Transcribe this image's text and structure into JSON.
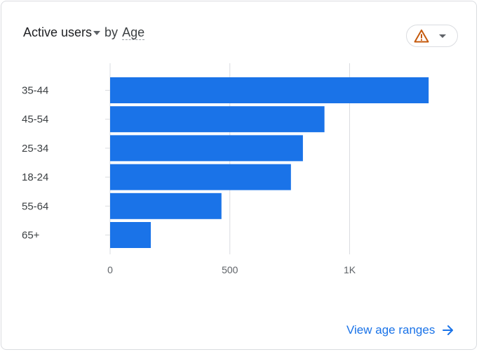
{
  "card": {
    "title_metric": "Active users",
    "title_by": "by",
    "title_dimension": "Age",
    "warning_icon": "warning-triangle-icon",
    "view_link": "View age ranges",
    "view_link_icon": "arrow-right-icon"
  },
  "colors": {
    "bar": "#1a73e8",
    "warning": "#c5590c",
    "link": "#1a73e8"
  },
  "chart_data": {
    "type": "bar",
    "orientation": "horizontal",
    "categories": [
      "35-44",
      "45-54",
      "25-34",
      "18-24",
      "55-64",
      "65+"
    ],
    "values": [
      1330,
      895,
      805,
      755,
      465,
      170
    ],
    "xticks": [
      "0",
      "500",
      "1K"
    ],
    "xtick_values": [
      0,
      500,
      1000
    ],
    "xlim": [
      0,
      1330
    ],
    "grid": true
  }
}
